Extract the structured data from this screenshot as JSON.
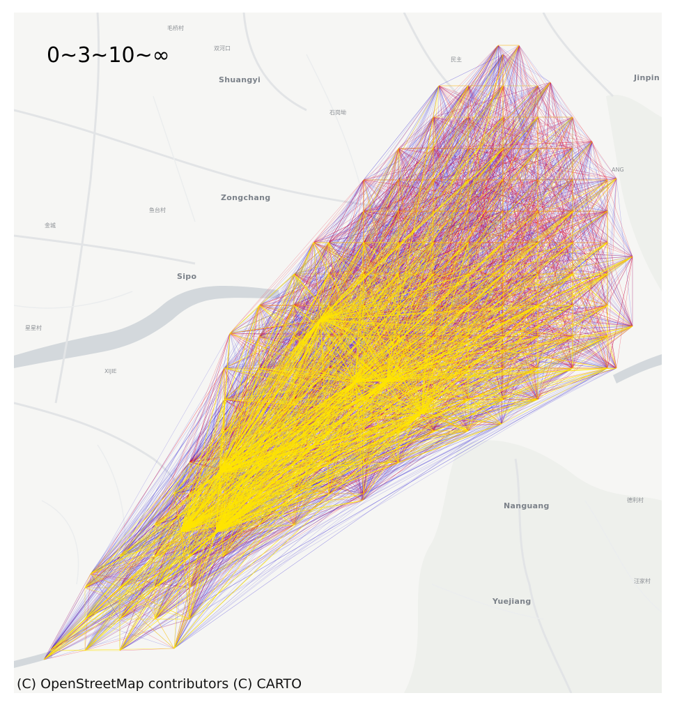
{
  "map": {
    "legend_label": "0~3~10~∞",
    "attribution": "(C) OpenStreetMap contributors (C) CARTO",
    "basemap_style": "light-grey",
    "colors": {
      "background": "#f6f6f4",
      "water": "#d3d8dc",
      "roads": "#ffffff",
      "band_0_3": "#ffe600",
      "band_3_10": "#e8102e",
      "band_10_inf": "#3a2ad6"
    },
    "place_labels": [
      {
        "name": "Shuangyi",
        "major": true
      },
      {
        "name": "Zongchang",
        "major": true
      },
      {
        "name": "Sipo",
        "major": true
      },
      {
        "name": "Nanguang",
        "major": true
      },
      {
        "name": "Yuejiang",
        "major": true
      },
      {
        "name": "Jinpin",
        "major": true
      },
      {
        "name": "XIJIE",
        "major": false
      },
      {
        "name": "毛桥村",
        "major": false
      },
      {
        "name": "双河口",
        "major": false
      },
      {
        "name": "民主",
        "major": false
      },
      {
        "name": "石岗坳",
        "major": false
      },
      {
        "name": "鱼台村",
        "major": false
      },
      {
        "name": "金城",
        "major": false
      },
      {
        "name": "星星村",
        "major": false
      },
      {
        "name": "德利村",
        "major": false
      },
      {
        "name": "汪家村",
        "major": false
      },
      {
        "name": "ANG",
        "major": false
      }
    ]
  }
}
